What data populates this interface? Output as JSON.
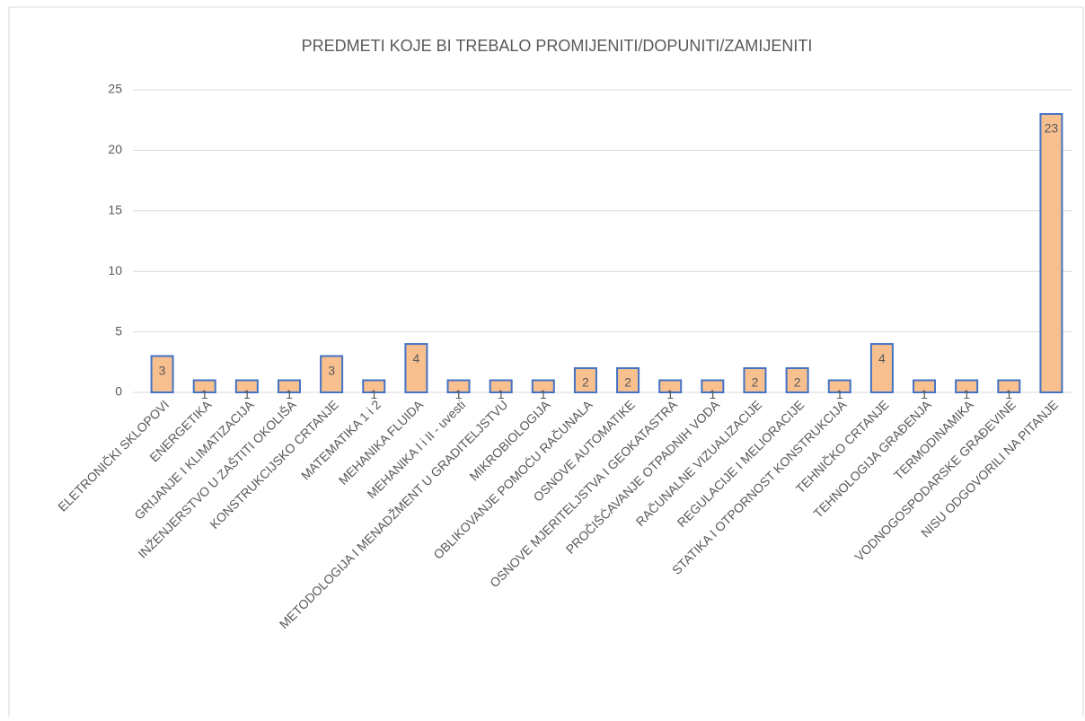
{
  "chart_data": {
    "type": "bar",
    "title": "PREDMETI KOJE BI TREBALO PROMIJENITI/DOPUNITI/ZAMIJENITI",
    "categories": [
      "ELETRONIČKI SKLOPOVI",
      "ENERGETIKA",
      "GRIJANJE I KLIMATIZACIJA",
      "INŽENJERSTVO U ZAŠTITI OKOLIŠA",
      "KONSTRUKCIJSKO CRTANJE",
      "MATEMATIKA 1 i 2",
      "MEHANIKA FLUIDA",
      "MEHANIKA I i II - uvesti",
      "METODOLOGIJA I MENADŽMENT U GRADITELJSTVU",
      "MIKROBIOLOGIJA",
      "OBLIKOVANJE POMOĆU RAČUNALA",
      "OSNOVE AUTOMATIKE",
      "OSNOVE MJERITELJSTVA I GEOKATASTRA",
      "PROČIŠĆAVANJE OTPADNIH VODA",
      "RAČUNALNE VIZUALIZACIJE",
      "REGULACIJE I MELIORACIJE",
      "STATIKA I OTPORNOST KONSTRUKCIJA",
      "TEHNIČKO CRTANJE",
      "TEHNOLOGIJA GRAĐENJA",
      "TERMODINAMIKA",
      "VODNOGOSPODARSKE GRAĐEVINE",
      "NISU ODGOVORILI NA PITANJE"
    ],
    "values": [
      3,
      1,
      1,
      1,
      3,
      1,
      4,
      1,
      1,
      1,
      2,
      2,
      1,
      1,
      2,
      2,
      1,
      4,
      1,
      1,
      1,
      23
    ],
    "color": "#f8c08f",
    "edge_color": "#4472c4",
    "ylim": [
      0,
      25
    ],
    "yticks": [
      0,
      5,
      10,
      15,
      20,
      25
    ],
    "grid": true
  }
}
